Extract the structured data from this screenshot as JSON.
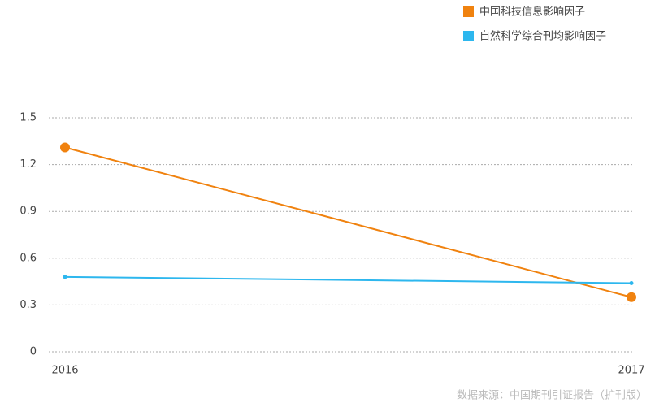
{
  "chart_data": {
    "type": "line",
    "categories": [
      "2016",
      "2017"
    ],
    "series": [
      {
        "name": "中国科技信息影响因子",
        "color": "#f0820f",
        "values": [
          1.31,
          0.35
        ]
      },
      {
        "name": "自然科学综合刊均影响因子",
        "color": "#2db7ee",
        "values": [
          0.48,
          0.44
        ]
      }
    ],
    "ylim": [
      0,
      1.5
    ],
    "yticks": [
      0,
      0.3,
      0.6,
      0.9,
      1.2,
      1.5
    ],
    "grid": true,
    "legend": "top-right",
    "source": "数据来源：中国期刊引证报告（扩刊版）"
  }
}
